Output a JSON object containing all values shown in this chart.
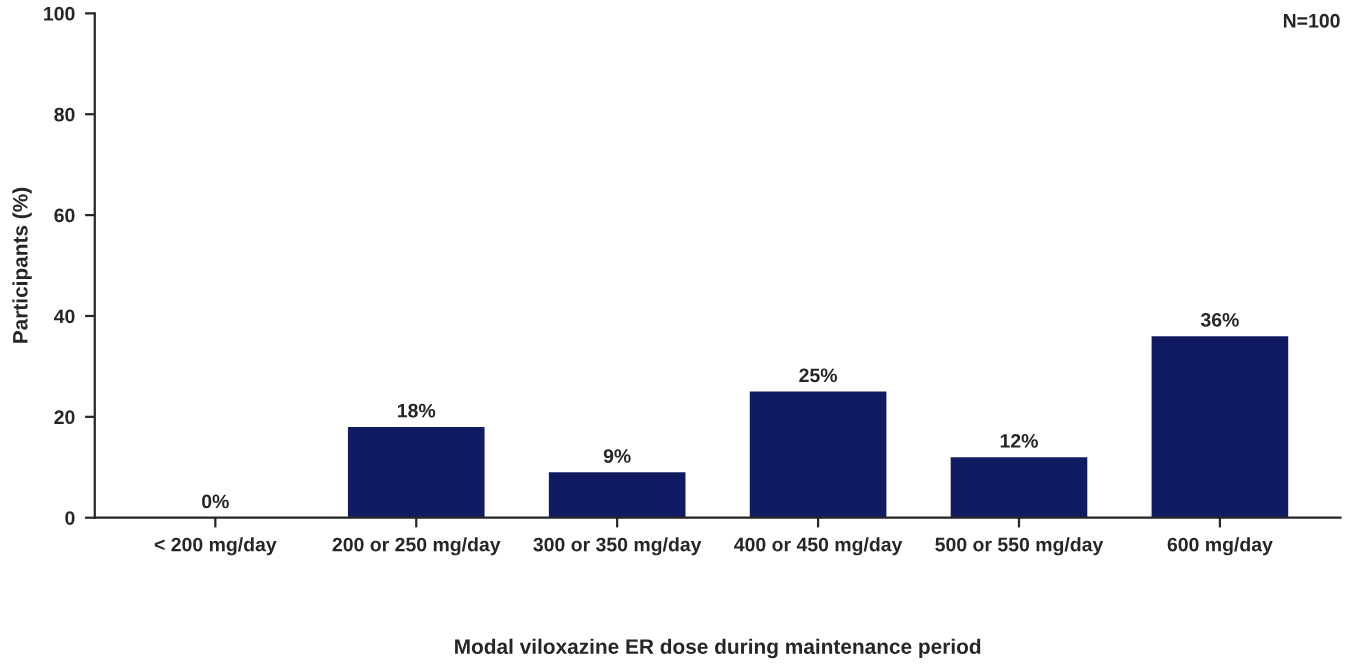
{
  "chart_data": {
    "type": "bar",
    "categories": [
      "< 200 mg/day",
      "200 or 250 mg/day",
      "300 or 350 mg/day",
      "400 or 450 mg/day",
      "500 or 550 mg/day",
      "600 mg/day"
    ],
    "values": [
      0,
      18,
      9,
      25,
      12,
      36
    ],
    "value_labels": [
      "0%",
      "18%",
      "9%",
      "25%",
      "12%",
      "36%"
    ],
    "color": "#111b62",
    "xlabel": "Modal viloxazine ER dose during maintenance period",
    "ylabel": "Participants (%)",
    "ylim": [
      0,
      100
    ],
    "yticks": [
      0,
      20,
      40,
      60,
      80,
      100
    ],
    "annotations": [
      "N=100"
    ],
    "grid": false,
    "legend": false
  }
}
